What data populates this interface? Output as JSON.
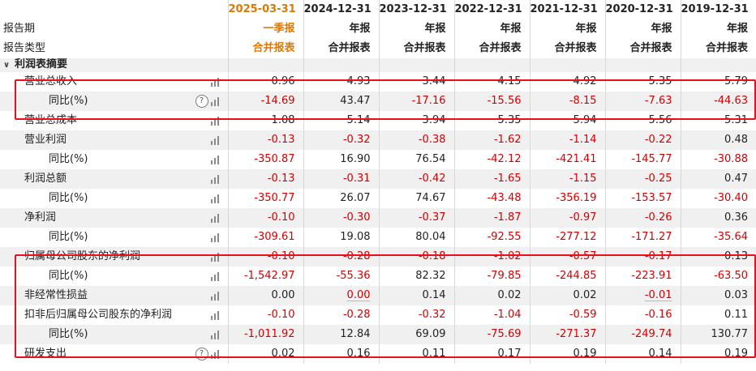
{
  "header": {
    "dates": [
      "2025-03-31",
      "2024-12-31",
      "2023-12-31",
      "2022-12-31",
      "2021-12-31",
      "2020-12-31",
      "2019-12-31"
    ],
    "period_label": "报告期",
    "periods": [
      "一季报",
      "年报",
      "年报",
      "年报",
      "年报",
      "年报",
      "年报"
    ],
    "type_label": "报告类型",
    "types": [
      "合并报表",
      "合并报表",
      "合并报表",
      "合并报表",
      "合并报表",
      "合并报表",
      "合并报表"
    ]
  },
  "section": {
    "label": "利润表摘要"
  },
  "rows": [
    {
      "label": "营业总收入",
      "values": [
        "0.96",
        "4.93",
        "3.44",
        "4.15",
        "4.92",
        "5.35",
        "5.79"
      ]
    },
    {
      "label": "同比(%)",
      "values": [
        "-14.69",
        "43.47",
        "-17.16",
        "-15.56",
        "-8.15",
        "-7.63",
        "-44.63"
      ]
    },
    {
      "label": "营业总成本",
      "values": [
        "1.08",
        "5.14",
        "3.94",
        "5.35",
        "5.94",
        "5.56",
        "5.31"
      ]
    },
    {
      "label": "营业利润",
      "values": [
        "-0.13",
        "-0.32",
        "-0.38",
        "-1.62",
        "-1.14",
        "-0.22",
        "0.48"
      ]
    },
    {
      "label": "同比(%)",
      "values": [
        "-350.87",
        "16.90",
        "76.54",
        "-42.12",
        "-421.41",
        "-145.77",
        "-30.88"
      ]
    },
    {
      "label": "利润总额",
      "values": [
        "-0.13",
        "-0.31",
        "-0.42",
        "-1.65",
        "-1.15",
        "-0.25",
        "0.47"
      ]
    },
    {
      "label": "同比(%)",
      "values": [
        "-350.77",
        "26.07",
        "74.67",
        "-43.48",
        "-356.19",
        "-153.57",
        "-30.40"
      ]
    },
    {
      "label": "净利润",
      "values": [
        "-0.10",
        "-0.30",
        "-0.37",
        "-1.87",
        "-0.97",
        "-0.26",
        "0.36"
      ]
    },
    {
      "label": "同比(%)",
      "values": [
        "-309.61",
        "19.08",
        "80.04",
        "-92.55",
        "-277.12",
        "-171.27",
        "-35.64"
      ]
    },
    {
      "label": "归属母公司股东的净利润",
      "values": [
        "-0.10",
        "-0.28",
        "-0.18",
        "-1.02",
        "-0.57",
        "-0.17",
        "0.13"
      ]
    },
    {
      "label": "同比(%)",
      "values": [
        "-1,542.97",
        "-55.36",
        "82.32",
        "-79.85",
        "-244.85",
        "-223.91",
        "-63.50"
      ]
    },
    {
      "label": "非经常性损益",
      "values": [
        "0.00",
        "0.00",
        "0.14",
        "0.02",
        "0.02",
        "-0.01",
        "0.03"
      ]
    },
    {
      "label": "扣非后归属母公司股东的净利润",
      "values": [
        "-0.10",
        "-0.28",
        "-0.32",
        "-1.04",
        "-0.59",
        "-0.16",
        "0.11"
      ]
    },
    {
      "label": "同比(%)",
      "values": [
        "-1,011.92",
        "12.84",
        "69.09",
        "-75.69",
        "-271.37",
        "-249.74",
        "130.77"
      ]
    },
    {
      "label": "研发支出",
      "values": [
        "0.02",
        "0.16",
        "0.11",
        "0.17",
        "0.19",
        "0.14",
        "0.19"
      ]
    }
  ],
  "colors": {
    "negative": "#d40000",
    "highlight_date": "#e07800",
    "box": "#e8101e"
  },
  "icons": {
    "row_chart": "bar-chart-icon",
    "help": "help-circle-icon",
    "collapse": "chevron-down-icon"
  },
  "help_glyph": "?",
  "collapse_glyph": "∨"
}
